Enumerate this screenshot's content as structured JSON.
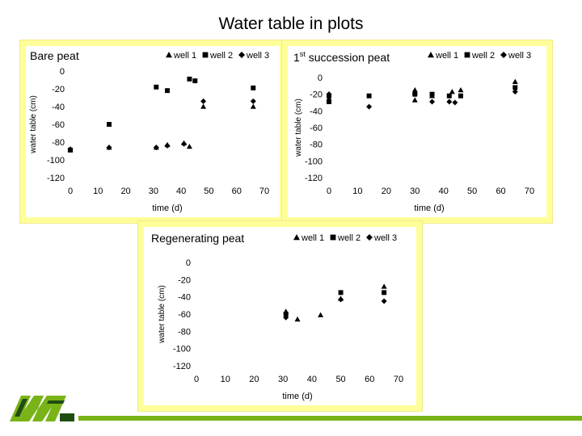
{
  "page": {
    "title": "Water table in plots",
    "accent_color": "#7ab317",
    "panel_color": "#ffff99",
    "logo": "M-logo"
  },
  "chart_data": [
    {
      "type": "scatter",
      "title": "Bare peat",
      "title_prefix": "",
      "title_sup": "",
      "xlabel": "time (d)",
      "ylabel": "water table (cm)",
      "xlim": [
        0,
        70
      ],
      "ylim": [
        -120,
        0
      ],
      "xticks": [
        "0",
        "10",
        "20",
        "30",
        "40",
        "50",
        "60",
        "70"
      ],
      "yticks": [
        "0",
        "-20",
        "-40",
        "-60",
        "-80",
        "-100",
        "-120"
      ],
      "legend": [
        "well 1",
        "well 2",
        "well 3"
      ],
      "grid": false,
      "series": [
        {
          "name": "well 1",
          "marker": "triangle",
          "points": [
            [
              0,
              -88
            ],
            [
              14,
              -86
            ],
            [
              31,
              -86
            ],
            [
              35,
              -83
            ],
            [
              41,
              -81
            ],
            [
              43,
              -85
            ],
            [
              48,
              -40
            ],
            [
              66,
              -40
            ]
          ]
        },
        {
          "name": "well 2",
          "marker": "square",
          "points": [
            [
              0,
              -89
            ],
            [
              14,
              -60
            ],
            [
              31,
              -18
            ],
            [
              35,
              -22
            ],
            [
              43,
              -9
            ],
            [
              45,
              -11
            ],
            [
              66,
              -19
            ]
          ]
        },
        {
          "name": "well 3",
          "marker": "diamond",
          "points": [
            [
              0,
              -88
            ],
            [
              14,
              -86
            ],
            [
              31,
              -86
            ],
            [
              35,
              -84
            ],
            [
              41,
              -82
            ],
            [
              48,
              -34
            ],
            [
              66,
              -34
            ]
          ]
        }
      ]
    },
    {
      "type": "scatter",
      "title": "succession peat",
      "title_prefix": "1",
      "title_sup": "st",
      "xlabel": "time (d)",
      "ylabel": "water table (cm)",
      "xlim": [
        0,
        70
      ],
      "ylim": [
        -120,
        0
      ],
      "xticks": [
        "0",
        "10",
        "20",
        "30",
        "40",
        "50",
        "60",
        "70"
      ],
      "yticks": [
        "0",
        "-20",
        "-40",
        "-60",
        "-80",
        "-100",
        "-120"
      ],
      "legend": [
        "well 1",
        "well 2",
        "well 3"
      ],
      "grid": false,
      "series": [
        {
          "name": "well 1",
          "marker": "triangle",
          "points": [
            [
              0,
              -25
            ],
            [
              30,
              -15
            ],
            [
              30,
              -27
            ],
            [
              36,
              -22
            ],
            [
              43,
              -17
            ],
            [
              46,
              -15
            ],
            [
              65,
              -5
            ]
          ]
        },
        {
          "name": "well 2",
          "marker": "square",
          "points": [
            [
              0,
              -22
            ],
            [
              0,
              -29
            ],
            [
              14,
              -22
            ],
            [
              30,
              -20
            ],
            [
              36,
              -20
            ],
            [
              42,
              -22
            ],
            [
              46,
              -22
            ],
            [
              65,
              -12
            ]
          ]
        },
        {
          "name": "well 3",
          "marker": "diamond",
          "points": [
            [
              0,
              -20
            ],
            [
              14,
              -35
            ],
            [
              30,
              -20
            ],
            [
              36,
              -29
            ],
            [
              42,
              -29
            ],
            [
              44,
              -30
            ],
            [
              65,
              -17
            ]
          ]
        }
      ]
    },
    {
      "type": "scatter",
      "title": "Regenerating peat",
      "title_prefix": "",
      "title_sup": "",
      "xlabel": "time (d)",
      "ylabel": "water table (cm)",
      "xlim": [
        0,
        70
      ],
      "ylim": [
        -120,
        0
      ],
      "xticks": [
        "0",
        "10",
        "20",
        "30",
        "40",
        "50",
        "60",
        "70"
      ],
      "yticks": [
        "0",
        "-20",
        "-40",
        "-60",
        "-80",
        "-100",
        "-120"
      ],
      "legend": [
        "well 1",
        "well 2",
        "well 3"
      ],
      "grid": false,
      "series": [
        {
          "name": "well 1",
          "marker": "triangle",
          "points": [
            [
              31,
              -57
            ],
            [
              35,
              -66
            ],
            [
              43,
              -61
            ],
            [
              50,
              -42
            ],
            [
              65,
              -28
            ]
          ]
        },
        {
          "name": "well 2",
          "marker": "square",
          "points": [
            [
              31,
              -60
            ],
            [
              50,
              -35
            ],
            [
              65,
              -35
            ]
          ]
        },
        {
          "name": "well 3",
          "marker": "diamond",
          "points": [
            [
              31,
              -64
            ],
            [
              50,
              -43
            ],
            [
              65,
              -45
            ]
          ]
        }
      ]
    }
  ]
}
